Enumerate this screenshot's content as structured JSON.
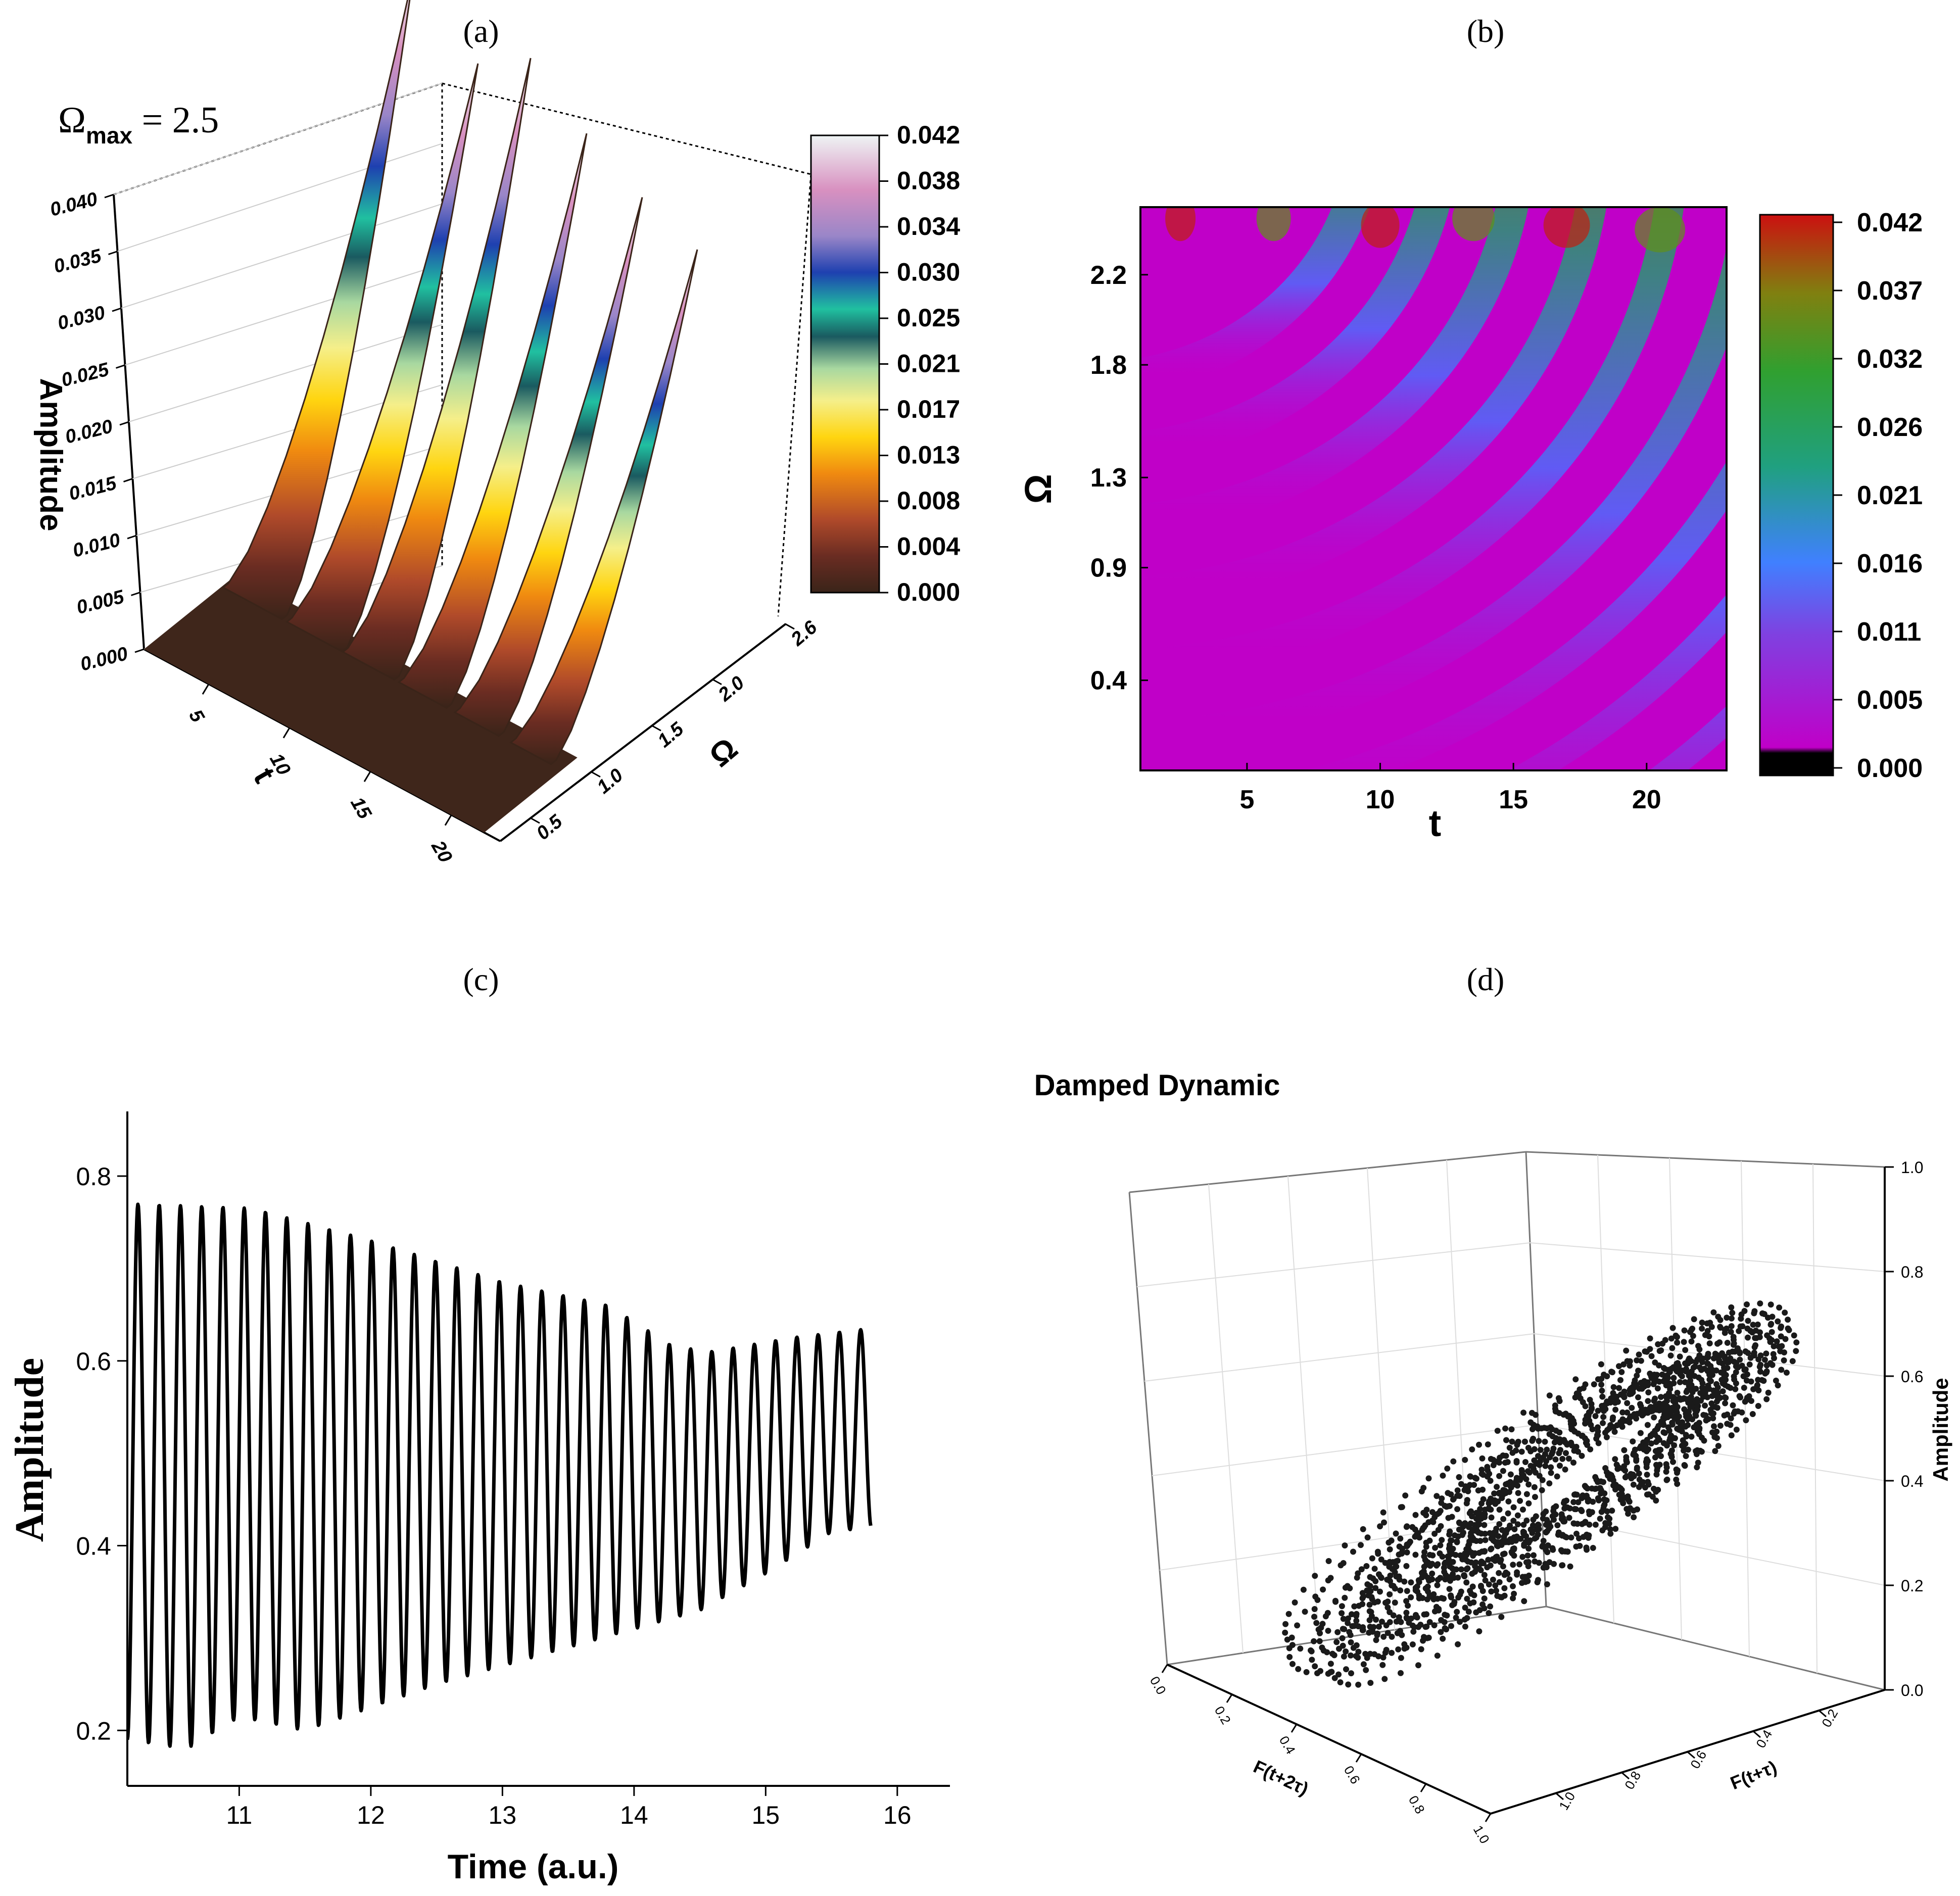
{
  "panels": {
    "a": {
      "label": "(a)"
    },
    "b": {
      "label": "(b)"
    },
    "c": {
      "label": "(c)"
    },
    "d": {
      "label": "(d)"
    }
  },
  "chart_data": [
    {
      "id": "a",
      "type": "surface3d",
      "annotation_prefix": "Ω",
      "annotation_sub": "max",
      "annotation_value": " = 2.5",
      "xlabel": "t",
      "ylabel": "Ω",
      "zlabel": "Amplitude",
      "x_ticks": [
        "5",
        "10",
        "15",
        "20"
      ],
      "y_ticks": [
        "0.5",
        "1.0",
        "1.5",
        "2.0",
        "2.6"
      ],
      "z_ticks": [
        "0.000",
        "0.005",
        "0.010",
        "0.015",
        "0.020",
        "0.025",
        "0.030",
        "0.035",
        "0.040"
      ],
      "zlim": [
        0,
        0.042
      ],
      "peak_t": [
        3,
        7,
        10.5,
        14,
        17.5,
        21
      ],
      "peak_values": [
        0.042,
        0.037,
        0.04,
        0.036,
        0.033,
        0.031
      ],
      "colorbar_ticks": [
        "0.042",
        "0.038",
        "0.034",
        "0.030",
        "0.025",
        "0.021",
        "0.017",
        "0.013",
        "0.008",
        "0.004",
        "0.000"
      ],
      "colors": [
        "#3a2419",
        "#6a2c22",
        "#b04a2a",
        "#f08a10",
        "#ffd510",
        "#f5ef8a",
        "#a8d8a0",
        "#1a5a60",
        "#20c0a0",
        "#1e40b0",
        "#9a86c8",
        "#d890c0",
        "#eef4f4"
      ]
    },
    {
      "id": "b",
      "type": "heatmap",
      "xlabel": "t",
      "ylabel": "Ω",
      "x_ticks": [
        "5",
        "10",
        "15",
        "20"
      ],
      "y_ticks": [
        "0.4",
        "0.9",
        "1.3",
        "1.8",
        "2.2"
      ],
      "xlim": [
        1,
        23
      ],
      "ylim": [
        0,
        2.5
      ],
      "colorbar_ticks": [
        "0.042",
        "0.037",
        "0.032",
        "0.026",
        "0.021",
        "0.016",
        "0.011",
        "0.005",
        "0.000"
      ],
      "colors": [
        "#000000",
        "#c000c8",
        "#4080ff",
        "#20a080",
        "#30a030",
        "#cc1010"
      ]
    },
    {
      "id": "c",
      "type": "line",
      "xlabel": "Time (a.u.)",
      "ylabel": "Amplitude",
      "x_ticks": [
        "11",
        "12",
        "13",
        "14",
        "15",
        "16"
      ],
      "y_ticks": [
        "0.2",
        "0.4",
        "0.6",
        "0.8"
      ],
      "xlim": [
        10.15,
        16.4
      ],
      "ylim": [
        0.14,
        0.87
      ],
      "series": [
        {
          "name": "Amplitude",
          "t_start": 10.15,
          "t_end": 15.8,
          "period": 0.1615,
          "upper_envelope": [
            [
              10.15,
              0.77
            ],
            [
              11.1,
              0.765
            ],
            [
              12.0,
              0.73
            ],
            [
              13.0,
              0.685
            ],
            [
              13.8,
              0.66
            ],
            [
              14.3,
              0.615
            ],
            [
              14.6,
              0.61
            ],
            [
              15.2,
              0.625
            ],
            [
              15.8,
              0.635
            ]
          ],
          "lower_envelope": [
            [
              10.15,
              0.19
            ],
            [
              10.6,
              0.18
            ],
            [
              11.0,
              0.215
            ],
            [
              11.5,
              0.2
            ],
            [
              12.5,
              0.25
            ],
            [
              13.0,
              0.27
            ],
            [
              13.5,
              0.29
            ],
            [
              14.0,
              0.31
            ],
            [
              14.5,
              0.33
            ],
            [
              15.0,
              0.37
            ],
            [
              15.5,
              0.415
            ],
            [
              15.8,
              0.42
            ]
          ]
        }
      ]
    },
    {
      "id": "d",
      "type": "scatter3d",
      "title": "Damped Dynamic",
      "xlabel": "F(t+2τ)",
      "ylabel": "F(t+τ)",
      "zlabel": "Amplitude",
      "x_ticks": [
        "0.0",
        "0.2",
        "0.4",
        "0.6",
        "0.8",
        "1.0"
      ],
      "y_ticks": [
        "0.2",
        "0.4",
        "0.6",
        "0.8",
        "1.0"
      ],
      "z_ticks": [
        "0.0",
        "0.2",
        "0.4",
        "0.6",
        "0.8",
        "1.0"
      ],
      "zlim": [
        0,
        1
      ],
      "curve_center": [
        0.45,
        0.45
      ],
      "loop_count": 30
    }
  ]
}
